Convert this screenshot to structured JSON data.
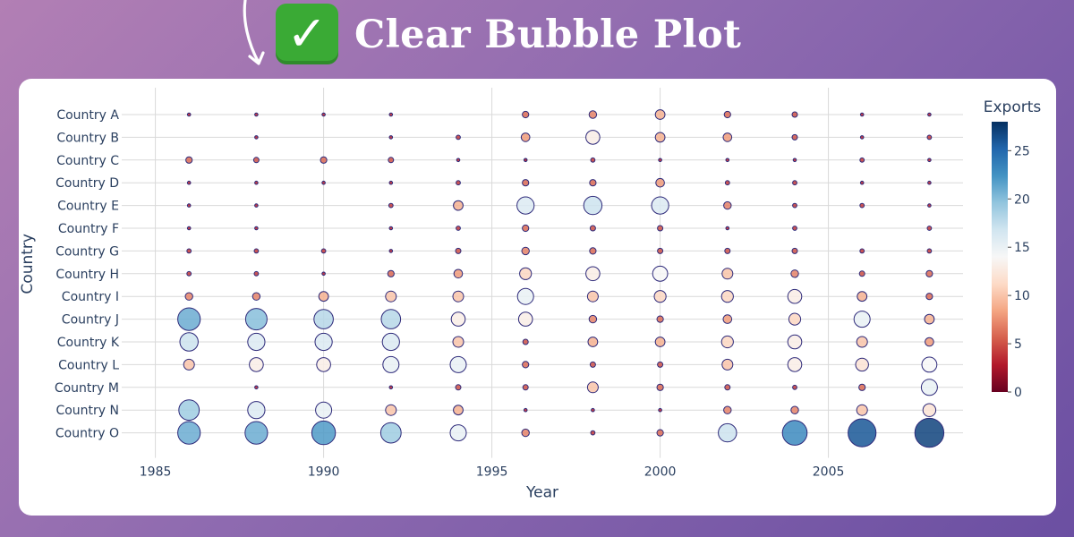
{
  "header": {
    "title": "Clear Bubble Plot",
    "check_icon": "white-heavy-check-mark-icon",
    "arrow_icon": "curved-down-arrow-icon"
  },
  "chart_data": {
    "type": "scatter",
    "subtype": "bubble",
    "title": "",
    "xlabel": "Year",
    "ylabel": "Country",
    "xlim": [
      1984,
      2009
    ],
    "x_ticks": [
      1985,
      1990,
      1995,
      2000,
      2005
    ],
    "grid": true,
    "categories": [
      "Country A",
      "Country B",
      "Country C",
      "Country D",
      "Country E",
      "Country F",
      "Country G",
      "Country H",
      "Country I",
      "Country J",
      "Country K",
      "Country L",
      "Country M",
      "Country N",
      "Country O"
    ],
    "years": [
      1986,
      1988,
      1990,
      1992,
      1994,
      1996,
      1998,
      2000,
      2002,
      2004,
      2006,
      2008
    ],
    "size_and_color": "Exports",
    "colorbar": {
      "title": "Exports",
      "range": [
        0,
        28
      ],
      "ticks": [
        0,
        5,
        10,
        15,
        20,
        25
      ],
      "colorscale": [
        "#67001f",
        "#b2182b",
        "#d6604d",
        "#f4a582",
        "#fddbc7",
        "#f7f7f7",
        "#d1e5f0",
        "#92c5de",
        "#4393c3",
        "#2166ac",
        "#053061"
      ],
      "placement": "right"
    },
    "marker_outline": "#2e2a7a",
    "series": [
      {
        "name": "Country A",
        "values": [
          3,
          3,
          3,
          3,
          null,
          6,
          7,
          9,
          6,
          5,
          3,
          3
        ]
      },
      {
        "name": "Country B",
        "values": [
          null,
          3,
          null,
          3,
          4,
          8,
          13,
          9,
          8,
          5,
          3,
          4
        ]
      },
      {
        "name": "Country C",
        "values": [
          6,
          5,
          6,
          5,
          3,
          2,
          4,
          3,
          3,
          3,
          4,
          3
        ]
      },
      {
        "name": "Country D",
        "values": [
          3,
          3,
          3,
          3,
          4,
          6,
          6,
          8,
          4,
          4,
          3,
          3
        ]
      },
      {
        "name": "Country E",
        "values": [
          3,
          3,
          null,
          4,
          9,
          16,
          17,
          16,
          7,
          4,
          4,
          3
        ]
      },
      {
        "name": "Country F",
        "values": [
          3,
          3,
          null,
          3,
          4,
          6,
          5,
          5,
          3,
          4,
          null,
          4
        ]
      },
      {
        "name": "Country G",
        "values": [
          4,
          4,
          4,
          3,
          5,
          7,
          6,
          5,
          5,
          5,
          4,
          4
        ]
      },
      {
        "name": "Country H",
        "values": [
          4,
          4,
          3,
          6,
          8,
          11,
          13,
          14,
          10,
          7,
          5,
          6
        ]
      },
      {
        "name": "Country I",
        "values": [
          7,
          7,
          9,
          10,
          10,
          15,
          10,
          11,
          11,
          13,
          9,
          6
        ]
      },
      {
        "name": "Country J",
        "values": [
          21,
          20,
          18,
          18,
          13,
          13,
          7,
          6,
          8,
          11,
          15,
          9
        ]
      },
      {
        "name": "Country K",
        "values": [
          17,
          16,
          16,
          16,
          10,
          5,
          9,
          9,
          11,
          13,
          10,
          8
        ]
      },
      {
        "name": "Country L",
        "values": [
          10,
          13,
          13,
          15,
          15,
          6,
          5,
          5,
          10,
          13,
          12,
          14
        ]
      },
      {
        "name": "Country M",
        "values": [
          null,
          3,
          null,
          3,
          5,
          5,
          10,
          6,
          5,
          4,
          6,
          15
        ]
      },
      {
        "name": "Country N",
        "values": [
          19,
          16,
          15,
          10,
          9,
          3,
          3,
          3,
          7,
          7,
          10,
          12
        ]
      },
      {
        "name": "Country O",
        "values": [
          21,
          21,
          22,
          19,
          15,
          7,
          4,
          6,
          17,
          23,
          26,
          27
        ]
      }
    ]
  }
}
